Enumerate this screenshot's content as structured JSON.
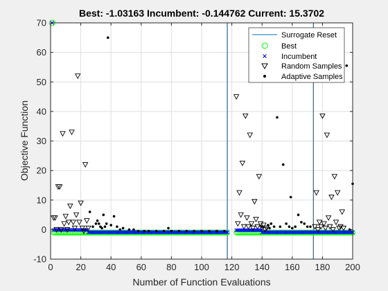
{
  "chart_data": {
    "type": "scatter",
    "title": "Best: -1.03163 Incumbent: -0.144762 Current: 15.3702",
    "xlabel": "Number of Function Evaluations",
    "ylabel": "Objective Function",
    "xlim": [
      0,
      200
    ],
    "ylim": [
      -10,
      70
    ],
    "xticks": [
      0,
      20,
      40,
      60,
      80,
      100,
      120,
      140,
      160,
      180,
      200
    ],
    "yticks": [
      -10,
      0,
      10,
      20,
      30,
      40,
      50,
      60,
      70
    ],
    "grid": true,
    "legend_position": "top-right",
    "colors": {
      "surrogate_reset": "#0072bd",
      "best": "#00ff00",
      "incumbent": "#0000ff",
      "samples": "#000000"
    },
    "series": [
      {
        "name": "Surrogate Reset",
        "kind": "vline",
        "x": [
          117,
          174
        ]
      },
      {
        "name": "Best",
        "kind": "circle",
        "x": [
          1
        ],
        "y": [
          70
        ],
        "note_runs": [
          [
            2,
            117,
            -1.03
          ],
          [
            123,
            174,
            -1.03
          ],
          [
            175,
            200,
            -1.03
          ]
        ]
      },
      {
        "name": "Incumbent",
        "kind": "x"
      },
      {
        "name": "Random Samples",
        "kind": "triangle",
        "points": [
          [
            2,
            4
          ],
          [
            3,
            4
          ],
          [
            4,
            0
          ],
          [
            5,
            14.5
          ],
          [
            6,
            14.5
          ],
          [
            7,
            0
          ],
          [
            8,
            32.5
          ],
          [
            9,
            2
          ],
          [
            10,
            4.5
          ],
          [
            11,
            0
          ],
          [
            12,
            2.5
          ],
          [
            13,
            8
          ],
          [
            14,
            33
          ],
          [
            15,
            2.5
          ],
          [
            16,
            0.5
          ],
          [
            17,
            5
          ],
          [
            18,
            52
          ],
          [
            19,
            2.5
          ],
          [
            20,
            9
          ],
          [
            21,
            0.5
          ],
          [
            22,
            -0.5
          ],
          [
            23,
            22
          ],
          [
            24,
            3
          ],
          [
            25,
            0.5
          ],
          [
            123,
            45
          ],
          [
            124,
            2
          ],
          [
            125,
            12.5
          ],
          [
            126,
            5
          ],
          [
            127,
            22.5
          ],
          [
            128,
            1
          ],
          [
            129,
            38.5
          ],
          [
            130,
            4
          ],
          [
            131,
            1
          ],
          [
            132,
            32
          ],
          [
            133,
            2
          ],
          [
            134,
            0.5
          ],
          [
            135,
            9.5
          ],
          [
            136,
            3.5
          ],
          [
            137,
            1
          ],
          [
            138,
            18
          ],
          [
            139,
            2
          ],
          [
            140,
            0.5
          ],
          [
            141,
            1.5
          ],
          [
            142,
            0
          ],
          [
            143,
            0.5
          ],
          [
            175,
            1
          ],
          [
            176,
            12.5
          ],
          [
            177,
            0
          ],
          [
            178,
            2.5
          ],
          [
            179,
            1
          ],
          [
            180,
            38.5
          ],
          [
            181,
            2
          ],
          [
            182,
            0.5
          ],
          [
            183,
            32
          ],
          [
            184,
            4
          ],
          [
            185,
            1
          ],
          [
            186,
            11
          ],
          [
            187,
            0
          ],
          [
            188,
            18
          ],
          [
            189,
            2.5
          ],
          [
            190,
            12.5
          ],
          [
            191,
            0.5
          ],
          [
            192,
            1
          ],
          [
            193,
            6
          ],
          [
            194,
            0.5
          ]
        ]
      },
      {
        "name": "Adaptive Samples",
        "kind": "dot",
        "points": [
          [
            26,
            6
          ],
          [
            28,
            1
          ],
          [
            30,
            2
          ],
          [
            31,
            3
          ],
          [
            32,
            2
          ],
          [
            33,
            1
          ],
          [
            34,
            0.5
          ],
          [
            35,
            5
          ],
          [
            36,
            1
          ],
          [
            37,
            2
          ],
          [
            38,
            65
          ],
          [
            40,
            1.5
          ],
          [
            42,
            4.5
          ],
          [
            44,
            1
          ],
          [
            46,
            0
          ],
          [
            48,
            0.5
          ],
          [
            52,
            0
          ],
          [
            55,
            0
          ],
          [
            58,
            -0.5
          ],
          [
            62,
            -0.5
          ],
          [
            65,
            -0.5
          ],
          [
            70,
            -0.5
          ],
          [
            75,
            -0.5
          ],
          [
            78,
            0.5
          ],
          [
            80,
            -0.5
          ],
          [
            85,
            -0.5
          ],
          [
            90,
            -0.5
          ],
          [
            95,
            -0.5
          ],
          [
            100,
            -0.5
          ],
          [
            105,
            -0.5
          ],
          [
            110,
            -0.5
          ],
          [
            115,
            -0.5
          ],
          [
            140,
            1
          ],
          [
            144,
            1.5
          ],
          [
            145,
            0.5
          ],
          [
            146,
            2
          ],
          [
            148,
            1
          ],
          [
            150,
            38
          ],
          [
            152,
            1
          ],
          [
            154,
            22
          ],
          [
            156,
            2
          ],
          [
            158,
            1
          ],
          [
            159,
            11
          ],
          [
            160,
            0.5
          ],
          [
            162,
            1
          ],
          [
            164,
            5
          ],
          [
            166,
            2.5
          ],
          [
            168,
            2
          ],
          [
            170,
            1
          ],
          [
            172,
            1
          ],
          [
            196,
            55.5
          ],
          [
            198,
            0
          ],
          [
            200,
            15.5
          ]
        ]
      }
    ]
  }
}
